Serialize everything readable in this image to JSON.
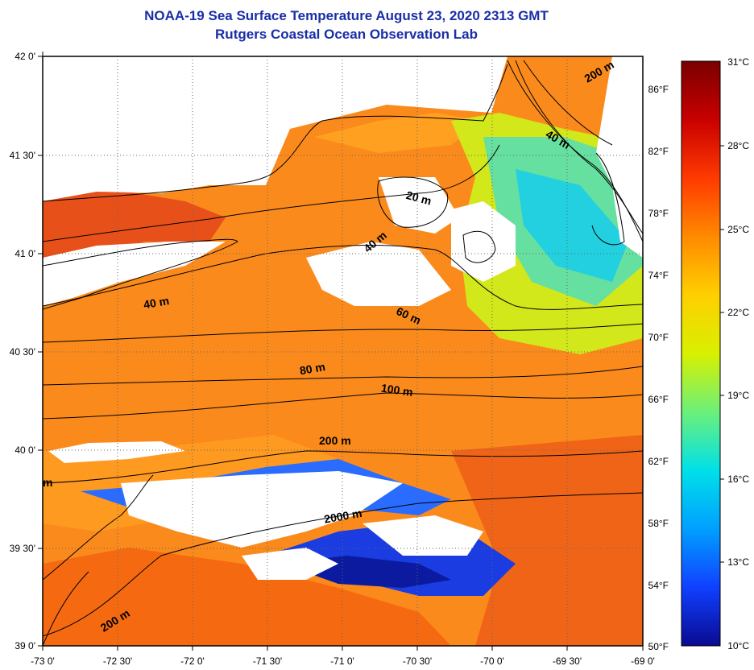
{
  "title": "NOAA-19 Sea Surface Temperature August 23, 2020 2313 GMT",
  "subtitle": "Rutgers Coastal Ocean Observation Lab",
  "map": {
    "lat_labels": [
      "42 0'",
      "41 30'",
      "41 0'",
      "40 30'",
      "40 0'",
      "39 30'",
      "39 0'"
    ],
    "lon_labels": [
      "-73 0'",
      "-72 30'",
      "-72 0'",
      "-71 30'",
      "-71 0'",
      "-70 30'",
      "-70 0'",
      "-69 30'",
      "-69 0'"
    ],
    "isobath_labels": [
      "200 m",
      "40 m",
      "20 m",
      "40 m",
      "40 m",
      "60 m",
      "80 m",
      "100 m",
      "200 m",
      "m",
      "2000 m",
      "200 m"
    ]
  },
  "colorbar": {
    "celsius_labels": [
      "31°C",
      "28°C",
      "25°C",
      "22°C",
      "19°C",
      "16°C",
      "13°C",
      "10°C"
    ],
    "fahrenheit_labels": [
      "86°F",
      "82°F",
      "78°F",
      "74°F",
      "70°F",
      "66°F",
      "62°F",
      "58°F",
      "54°F",
      "50°F"
    ],
    "colors": [
      "#7a0000",
      "#c80000",
      "#ff3a00",
      "#ff8a00",
      "#ffcf00",
      "#d8f000",
      "#6cf07a",
      "#00e0e8",
      "#00a0ff",
      "#1040ff",
      "#0a0a90"
    ]
  }
}
